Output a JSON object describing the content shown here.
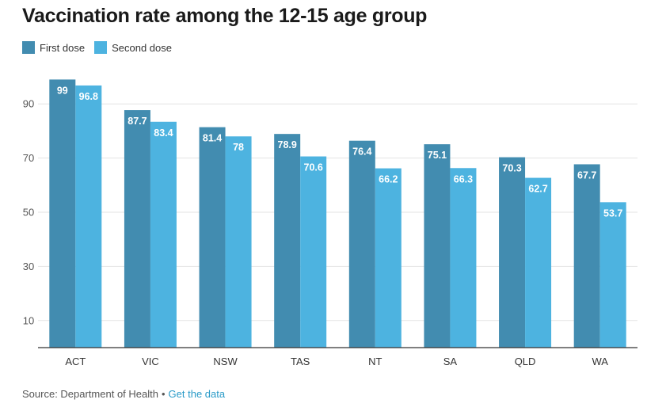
{
  "colors": {
    "first": "#428cb0",
    "second": "#4db3e0",
    "grid": "#e3e3e3",
    "axis": "#333333",
    "link": "#2a9bc8"
  },
  "footer": {
    "source": "Source: Department of Health",
    "separator": "•",
    "link_label": "Get the data"
  },
  "chart_data": {
    "type": "bar",
    "title": "Vaccination rate among the 12-15 age group",
    "xlabel": "",
    "ylabel": "",
    "ylim": [
      0,
      100
    ],
    "yticks": [
      10,
      30,
      50,
      70,
      90
    ],
    "grid": true,
    "legend_position": "top-left",
    "categories": [
      "ACT",
      "VIC",
      "NSW",
      "TAS",
      "NT",
      "SA",
      "QLD",
      "WA"
    ],
    "series": [
      {
        "name": "First dose",
        "values": [
          99,
          87.7,
          81.4,
          78.9,
          76.4,
          75.1,
          70.3,
          67.7
        ]
      },
      {
        "name": "Second dose",
        "values": [
          96.8,
          83.4,
          78,
          70.6,
          66.2,
          66.3,
          62.7,
          53.7
        ]
      }
    ]
  }
}
